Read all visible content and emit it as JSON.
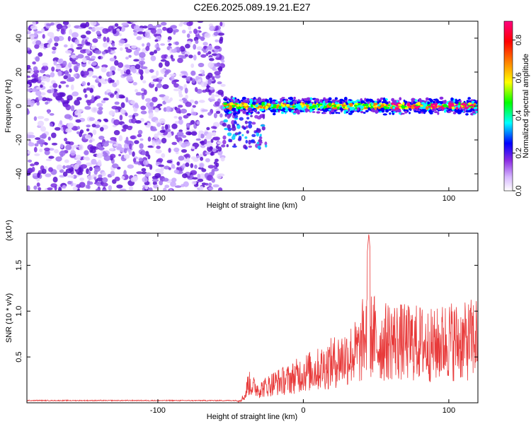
{
  "title": "C2E6.2025.089.19.21.E27",
  "colors": {
    "snr_line": "#e83a3a",
    "plot_bg": "#ffffff",
    "axis": "#000000"
  },
  "chart_data": [
    {
      "type": "heatmap",
      "xlabel": "Height of straight line (km)",
      "ylabel": "Frequency (Hz)",
      "xlim": [
        -190,
        120
      ],
      "ylim": [
        -50,
        50
      ],
      "x_ticks": [
        -100,
        0,
        100
      ],
      "y_ticks": [
        -40,
        -20,
        0,
        20,
        40
      ],
      "x_tick_labels": [
        "-100",
        "0",
        "100"
      ],
      "y_tick_labels": [
        "-40",
        "-20",
        "0",
        "20",
        "40"
      ],
      "colorbar": {
        "label": "Normalized spectral amplitude",
        "range": [
          0.0,
          0.9
        ],
        "ticks": [
          0.0,
          0.2,
          0.4,
          0.6,
          0.8
        ],
        "tick_labels": [
          "0.0",
          "0.2",
          "0.4",
          "0.6",
          "0.8"
        ],
        "colors": [
          "#ffffff",
          "#d7b8ff",
          "#8a2be2",
          "#0000ff",
          "#00ffff",
          "#00ff00",
          "#ffff00",
          "#ff8000",
          "#ff0000",
          "#ff0080"
        ]
      },
      "regions": [
        {
          "name": "noise",
          "x_range": [
            -190,
            -55
          ],
          "f_range": [
            -50,
            50
          ],
          "amplitude": 0.05
        },
        {
          "name": "signal",
          "x_range": [
            -55,
            120
          ],
          "f_center": 0,
          "f_halfwidth": 3,
          "amplitude_range": [
            0.3,
            0.9
          ]
        },
        {
          "name": "signal-tail",
          "x_range": [
            -55,
            -25
          ],
          "f_range": [
            -25,
            5
          ],
          "amplitude": 0.25
        }
      ]
    },
    {
      "type": "line",
      "xlabel": "Height of straight line (km)",
      "ylabel": "SNR (10 * v/v)",
      "y_multiplier_label": "(x10⁴)",
      "xlim": [
        -190,
        120
      ],
      "ylim": [
        0,
        1.85
      ],
      "x_ticks": [
        -100,
        0,
        100
      ],
      "y_ticks": [
        0.5,
        1.0,
        1.5
      ],
      "x_tick_labels": [
        "-100",
        "0",
        "100"
      ],
      "y_tick_labels": [
        "0.5",
        "1.0",
        "1.5"
      ],
      "series": [
        {
          "x": [
            -190,
            -150,
            -100,
            -60,
            -45,
            -40,
            -38,
            -35,
            -30,
            -20,
            -10,
            0,
            10,
            20,
            30,
            40,
            45,
            50,
            60,
            70,
            80,
            90,
            100,
            110,
            120
          ],
          "y": [
            0.0,
            0.0,
            0.0,
            0.0,
            0.02,
            0.1,
            0.3,
            0.25,
            0.2,
            0.3,
            0.35,
            0.45,
            0.5,
            0.6,
            0.7,
            0.8,
            1.85,
            0.85,
            0.95,
            0.9,
            0.9,
            0.85,
            0.95,
            0.9,
            1.0
          ]
        }
      ]
    }
  ]
}
